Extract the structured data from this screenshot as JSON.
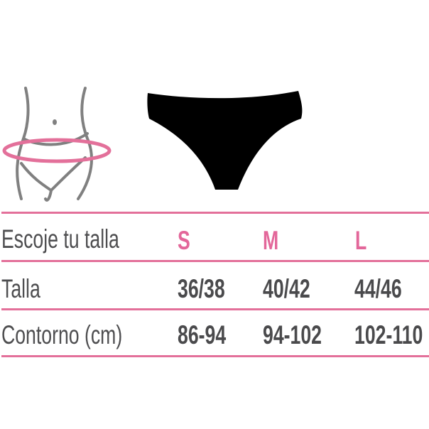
{
  "colors": {
    "accent": "#e3679a",
    "text": "#4a4a4c",
    "garment": "#000000",
    "figure_outline": "#808080"
  },
  "illustrations": {
    "body": "waist-measure-figure-icon",
    "garment": "brief-underwear-icon"
  },
  "table": {
    "header": {
      "label": "Escoje tu talla",
      "sizes": [
        "S",
        "M",
        "L"
      ]
    },
    "rows": [
      {
        "label": "Talla",
        "values": [
          "36/38",
          "40/42",
          "44/46"
        ]
      },
      {
        "label": "Contorno (cm)",
        "values": [
          "86-94",
          "94-102",
          "102-110"
        ]
      }
    ]
  }
}
